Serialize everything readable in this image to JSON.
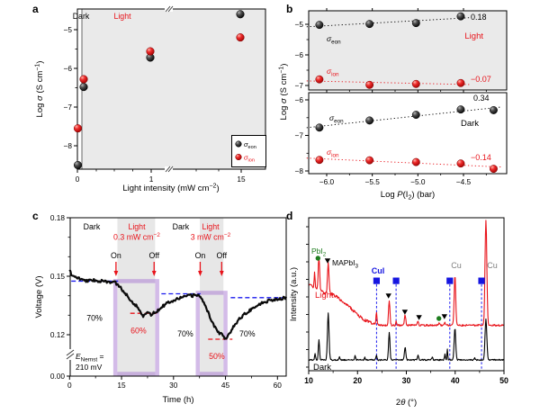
{
  "figure": {
    "panel_labels": {
      "a": "a",
      "b": "b",
      "c": "c",
      "d": "d"
    }
  },
  "colors": {
    "background": "#ffffff",
    "plot_bg_gray": "#eaeaea",
    "band_gray": "#e7e7e7",
    "black_series": "#000000",
    "red_series": "#e8131a",
    "blue_dash": "#1a1aee",
    "purple_band": "rgba(167,120,210,0.5)",
    "green_marker": "#1e7d1e",
    "blue_marker": "#1515e0",
    "cu_label": "#808080"
  },
  "chart_data": [
    {
      "id": "a",
      "type": "scatter",
      "xlabel_parts": [
        {
          "t": "Light intensity (mW cm"
        },
        {
          "t": "−2",
          "sup": 1
        },
        {
          "t": ")"
        }
      ],
      "ylabel_parts": [
        {
          "t": "Log "
        },
        {
          "t": "σ",
          "i": 1
        },
        {
          "t": " (S cm"
        },
        {
          "t": "−1",
          "sup": 1
        },
        {
          "t": ")"
        }
      ],
      "x_tick_labels": [
        "0",
        "1",
        "15"
      ],
      "y_tick_labels": [
        "−5",
        "−6",
        "−7",
        "−8"
      ],
      "y_ticks": [
        -5,
        -6,
        -7,
        -8
      ],
      "x_axis_break": true,
      "region_labels": {
        "dark": "Dark",
        "light": "Light"
      },
      "x_values": [
        0,
        0.1,
        1,
        15
      ],
      "series": [
        {
          "name_parts": [
            {
              "t": "σ",
              "i": 1
            },
            {
              "t": "eon",
              "sub": 1
            }
          ],
          "color_key": "black",
          "log_sigma": [
            -8.5,
            -6.48,
            -5.72,
            -4.6
          ]
        },
        {
          "name_parts": [
            {
              "t": "σ",
              "i": 1
            },
            {
              "t": "ion",
              "sub": 1
            }
          ],
          "color_key": "red",
          "log_sigma": [
            -7.55,
            -6.28,
            -5.56,
            -5.2
          ]
        }
      ]
    },
    {
      "id": "b",
      "type": "scatter",
      "xlabel_parts": [
        {
          "t": "Log "
        },
        {
          "t": "P",
          "i": 1
        },
        {
          "t": "(I"
        },
        {
          "t": "2",
          "sub": 1
        },
        {
          "t": ") (bar)"
        }
      ],
      "ylabel_parts": [
        {
          "t": "Log "
        },
        {
          "t": "σ",
          "i": 1
        },
        {
          "t": " (S cm"
        },
        {
          "t": "−1",
          "sup": 1
        },
        {
          "t": ")"
        }
      ],
      "x_ticks": [
        -6.0,
        -5.5,
        -5.0,
        -4.5
      ],
      "x_tick_labels": [
        "−6.0",
        "−5.5",
        "−5.0",
        "−4.5"
      ],
      "sigma_eon_parts": [
        {
          "t": "σ",
          "i": 1
        },
        {
          "t": "eon",
          "sub": 1
        }
      ],
      "sigma_ion_parts": [
        {
          "t": "σ",
          "i": 1
        },
        {
          "t": "ion",
          "sub": 1
        }
      ],
      "subpanels": [
        {
          "name": "Light",
          "bg": "gray",
          "y_ticks": [
            -5,
            -6,
            -7
          ],
          "y_tick_labels": [
            "−5",
            "−6",
            "−7"
          ],
          "series": [
            {
              "key": "eon",
              "color_key": "black",
              "x": [
                -6.08,
                -5.53,
                -5.02,
                -4.53
              ],
              "y": [
                -5.02,
                -4.99,
                -4.96,
                -4.74
              ],
              "slope_label": "0.18"
            },
            {
              "key": "ion",
              "color_key": "red",
              "x": [
                -6.08,
                -5.53,
                -5.02,
                -4.53
              ],
              "y": [
                -6.8,
                -6.98,
                -6.95,
                -6.92
              ],
              "slope_label": "−0.07"
            }
          ]
        },
        {
          "name": "Dark",
          "bg": "white",
          "y_ticks": [
            -6,
            -7,
            -8
          ],
          "y_tick_labels": [
            "−6",
            "−7",
            "−8"
          ],
          "series": [
            {
              "key": "eon",
              "color_key": "black",
              "x": [
                -6.08,
                -5.53,
                -5.02,
                -4.53,
                -4.17
              ],
              "y": [
                -6.78,
                -6.58,
                -6.42,
                -6.27,
                -6.29
              ],
              "slope_label": "0.34"
            },
            {
              "key": "ion",
              "color_key": "red",
              "x": [
                -6.08,
                -5.53,
                -5.02,
                -4.53,
                -4.17
              ],
              "y": [
                -7.69,
                -7.7,
                -7.75,
                -7.79,
                -7.94
              ],
              "slope_label": "−0.14"
            }
          ]
        }
      ]
    },
    {
      "id": "c",
      "type": "line",
      "xlabel_parts": [
        {
          "t": "Time (h)"
        }
      ],
      "ylabel_parts": [
        {
          "t": "Voltage (V)"
        }
      ],
      "x_ticks": [
        0,
        15,
        30,
        45,
        60
      ],
      "x_tick_labels": [
        "0",
        "15",
        "30",
        "45",
        "60"
      ],
      "y_tick_vals": [
        0.18,
        0.15,
        0.12,
        0.0
      ],
      "y_tick_labels": [
        "0.18",
        "0.15",
        "0.12",
        "0.00"
      ],
      "y_axis_break": true,
      "curve_tV": [
        [
          0,
          0.1525
        ],
        [
          0.8,
          0.1505
        ],
        [
          1.6,
          0.1495
        ],
        [
          2.5,
          0.149
        ],
        [
          3.5,
          0.1482
        ],
        [
          4.5,
          0.1478
        ],
        [
          6,
          0.1477
        ],
        [
          7.5,
          0.148
        ],
        [
          9,
          0.1475
        ],
        [
          10.5,
          0.147
        ],
        [
          12,
          0.1472
        ],
        [
          13.2,
          0.1468
        ],
        [
          14,
          0.1452
        ],
        [
          15,
          0.1435
        ],
        [
          16,
          0.1415
        ],
        [
          17,
          0.1392
        ],
        [
          18,
          0.1373
        ],
        [
          19,
          0.1352
        ],
        [
          19.8,
          0.1335
        ],
        [
          20.6,
          0.1318
        ],
        [
          21.2,
          0.1295
        ],
        [
          21.8,
          0.1308
        ],
        [
          22.4,
          0.1315
        ],
        [
          23.2,
          0.1302
        ],
        [
          24,
          0.1308
        ],
        [
          24.8,
          0.1315
        ],
        [
          25.6,
          0.1328
        ],
        [
          26.5,
          0.1342
        ],
        [
          27.5,
          0.1355
        ],
        [
          28.5,
          0.1366
        ],
        [
          29.5,
          0.1374
        ],
        [
          30.5,
          0.1381
        ],
        [
          31.5,
          0.1387
        ],
        [
          32.5,
          0.1392
        ],
        [
          33.5,
          0.1396
        ],
        [
          34.5,
          0.1399
        ],
        [
          35.5,
          0.1401
        ],
        [
          36.5,
          0.1402
        ],
        [
          37.2,
          0.1403
        ],
        [
          37.8,
          0.1398
        ],
        [
          38.4,
          0.1378
        ],
        [
          39,
          0.1355
        ],
        [
          39.6,
          0.133
        ],
        [
          40.2,
          0.1305
        ],
        [
          40.8,
          0.128
        ],
        [
          41.4,
          0.1258
        ],
        [
          42,
          0.1238
        ],
        [
          42.6,
          0.1222
        ],
        [
          43.2,
          0.121
        ],
        [
          43.8,
          0.1208
        ],
        [
          44.2,
          0.1196
        ],
        [
          44.6,
          0.1186
        ],
        [
          45,
          0.1183
        ],
        [
          45.4,
          0.119
        ],
        [
          45.9,
          0.1202
        ],
        [
          46.5,
          0.1218
        ],
        [
          47.2,
          0.1238
        ],
        [
          48,
          0.1258
        ],
        [
          49,
          0.128
        ],
        [
          50,
          0.1298
        ],
        [
          51,
          0.1312
        ],
        [
          52,
          0.1326
        ],
        [
          53,
          0.1338
        ],
        [
          54,
          0.1349
        ],
        [
          55,
          0.1358
        ],
        [
          56,
          0.1366
        ],
        [
          57,
          0.1372
        ],
        [
          58,
          0.1377
        ],
        [
          59,
          0.1381
        ],
        [
          60,
          0.1384
        ],
        [
          61,
          0.1386
        ],
        [
          62.5,
          0.1388
        ]
      ],
      "light_bands": [
        {
          "t_on": 13.2,
          "t_off": 25.3,
          "gray": [
            13.8,
            24.7
          ],
          "level": 0.1475
        },
        {
          "t_on": 37.0,
          "t_off": 45.0,
          "gray": [
            37.6,
            44.4
          ],
          "level": 0.1415
        }
      ],
      "blue_dashes": [
        [
          0.5,
          14,
          0.1475
        ],
        [
          26.5,
          37.8,
          0.141
        ],
        [
          46.5,
          62.3,
          0.139
        ]
      ],
      "red_dashes": [
        [
          17.5,
          25.5,
          0.131
        ],
        [
          40,
          47,
          0.1177
        ]
      ],
      "on_off": [
        {
          "label": "On",
          "t": 13.4
        },
        {
          "label": "Off",
          "t": 24.4
        },
        {
          "label": "On",
          "t": 37.7
        },
        {
          "label": "Off",
          "t": 43.9
        }
      ],
      "top_labels": [
        {
          "lines": [
            [
              {
                "t": "Dark"
              }
            ]
          ],
          "t": 6.4,
          "red": 0
        },
        {
          "lines": [
            [
              {
                "t": "Light"
              }
            ],
            [
              {
                "t": "0.3 mW cm"
              },
              {
                "t": "−2",
                "sup": 1
              }
            ]
          ],
          "t": 19.4,
          "red": 1
        },
        {
          "lines": [
            [
              {
                "t": "Dark"
              }
            ]
          ],
          "t": 32.1,
          "red": 0
        },
        {
          "lines": [
            [
              {
                "t": "Light"
              }
            ],
            [
              {
                "t": "3 mW cm"
              },
              {
                "t": "−2",
                "sup": 1
              }
            ]
          ],
          "t": 40.7,
          "red": 1
        }
      ],
      "percent_labels": [
        {
          "text": "70%",
          "t": 7.2,
          "v": 0.1285,
          "red": 0
        },
        {
          "text": "60%",
          "t": 19.9,
          "v": 0.122,
          "red": 1
        },
        {
          "text": "70%",
          "t": 33.4,
          "v": 0.1205,
          "red": 0
        },
        {
          "text": "50%",
          "t": 42.5,
          "v": 0.109,
          "red": 1
        },
        {
          "text": "70%",
          "t": 51.3,
          "v": 0.1205,
          "red": 0
        }
      ],
      "nernst_line1_parts": [
        {
          "t": "E",
          "i": 1
        },
        {
          "t": "Nernst",
          "sub": 1
        },
        {
          "t": " ="
        }
      ],
      "nernst_line2": "210 mV"
    },
    {
      "id": "d",
      "type": "line",
      "xlabel_parts": [
        {
          "t": "2"
        },
        {
          "t": "θ",
          "i": 1
        },
        {
          "t": " (°)"
        }
      ],
      "ylabel_parts": [
        {
          "t": "Intensity (a.u.)"
        }
      ],
      "x_ticks": [
        10,
        20,
        30,
        40,
        50
      ],
      "x_tick_labels": [
        "10",
        "20",
        "30",
        "40",
        "50"
      ],
      "patterns": [
        {
          "name": "Light",
          "color_key": "red",
          "noise": 2.0,
          "bg_anchors": [
            [
              10,
              317
            ],
            [
              11,
              319
            ],
            [
              12.3,
              323
            ],
            [
              13.2,
              326
            ],
            [
              14.8,
              327
            ],
            [
              15.5,
              329
            ],
            [
              16.5,
              333
            ],
            [
              17.5,
              337
            ],
            [
              18.5,
              342
            ],
            [
              19.5,
              347
            ],
            [
              20.5,
              352
            ],
            [
              21.5,
              356
            ],
            [
              22.5,
              358
            ],
            [
              23.5,
              360
            ],
            [
              25,
              361.5
            ],
            [
              50,
              361.5
            ]
          ],
          "peaks": [
            [
              11.2,
              303,
              0.09
            ],
            [
              12.1,
              285,
              0.14
            ],
            [
              14.0,
              293,
              0.15
            ],
            [
              23.88,
              347,
              0.1
            ],
            [
              26.5,
              334,
              0.14
            ],
            [
              27.9,
              357,
              0.09
            ],
            [
              29.75,
              350,
              0.14
            ],
            [
              32.4,
              356.5,
              0.12
            ],
            [
              36.7,
              358.5,
              0.1
            ],
            [
              37.9,
              357.5,
              0.1
            ],
            [
              39.95,
              307,
              0.16
            ],
            [
              46.3,
              244,
              0.18
            ]
          ]
        },
        {
          "name": "Dark",
          "color_key": "black",
          "noise": 1.4,
          "bg_anchors": [
            [
              10,
              400
            ],
            [
              50,
              400
            ]
          ],
          "peaks": [
            [
              11.3,
              393,
              0.1
            ],
            [
              12.1,
              377,
              0.12
            ],
            [
              14.0,
              348,
              0.16
            ],
            [
              16.3,
              396,
              0.1
            ],
            [
              19.5,
              395.5,
              0.1
            ],
            [
              21.5,
              397,
              0.09
            ],
            [
              23.88,
              395,
              0.1
            ],
            [
              26.5,
              370,
              0.14
            ],
            [
              29.75,
              386,
              0.14
            ],
            [
              32.4,
              394,
              0.11
            ],
            [
              35.3,
              396.5,
              0.1
            ],
            [
              37.9,
              394,
              0.1
            ],
            [
              38.4,
              388,
              0.08
            ],
            [
              39.95,
              365,
              0.16
            ],
            [
              44,
              398,
              0.09
            ],
            [
              46.3,
              355,
              0.18
            ]
          ]
        }
      ],
      "cui_lines_theta": [
        23.9,
        27.9,
        38.9,
        45.4
      ],
      "triangles_theta_py": [
        [
          13.87,
          290
        ],
        [
          26.35,
          329
        ],
        [
          29.7,
          347
        ],
        [
          32.6,
          353
        ],
        [
          37.8,
          352
        ]
      ],
      "green_dots_theta_py": [
        [
          11.9,
          287
        ],
        [
          36.67,
          354
        ]
      ],
      "labels": {
        "pbi2_parts": [
          {
            "t": "PbI"
          },
          {
            "t": "2",
            "sub": 1
          }
        ],
        "mapbi3_parts": [
          {
            "t": "MAPbI"
          },
          {
            "t": "3",
            "sub": 1
          }
        ],
        "cui": "CuI",
        "cu1": "Cu",
        "cu2": "Cu",
        "light": "Light",
        "dark": "Dark"
      }
    }
  ]
}
